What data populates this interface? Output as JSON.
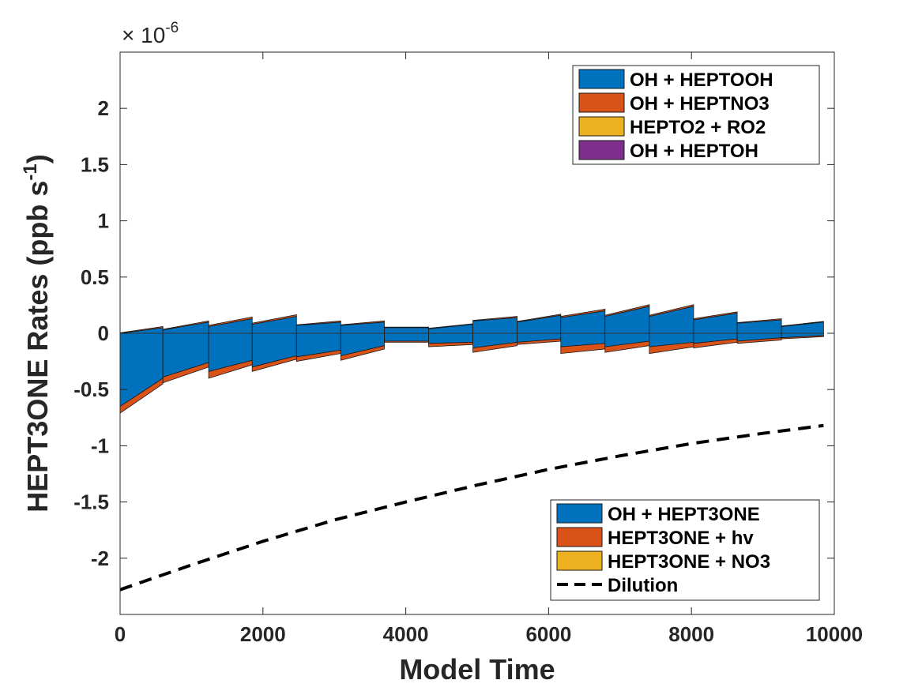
{
  "chart_data": {
    "type": "area",
    "xlabel": "Model Time",
    "ylabel": "HEPT3ONE Rates (ppb s",
    "ylabel_exp": "-1",
    "ylabel_close": ")",
    "y_multiplier_base": "× 10",
    "y_multiplier_exp": "-6",
    "xlim": [
      0,
      10000
    ],
    "ylim": [
      -2.5,
      2.5
    ],
    "x_ticks": [
      0,
      2000,
      4000,
      6000,
      8000,
      10000
    ],
    "x_tick_labels": [
      "0",
      "2000",
      "4000",
      "6000",
      "8000",
      "10000"
    ],
    "y_ticks": [
      -2,
      -1.5,
      -1,
      -0.5,
      0,
      0.5,
      1,
      1.5,
      2
    ],
    "y_tick_labels": [
      "-2",
      "-1.5",
      "-1",
      "-0.5",
      "0",
      "0.5",
      "1",
      "1.5",
      "2"
    ],
    "grid": false,
    "production_legend": {
      "placement": "top-right",
      "entries": [
        {
          "name": "OH + HEPTOOH",
          "color": "#0072bd"
        },
        {
          "name": "OH + HEPTNO3",
          "color": "#d95319"
        },
        {
          "name": "HEPTO2 + RO2",
          "color": "#edb120"
        },
        {
          "name": "OH + HEPTOH",
          "color": "#7e2f8e"
        }
      ]
    },
    "loss_legend": {
      "placement": "bottom-right",
      "entries": [
        {
          "name": "OH + HEPT3ONE",
          "color": "#0072bd",
          "style": "fill"
        },
        {
          "name": "HEPT3ONE + hv",
          "color": "#d95319",
          "style": "fill"
        },
        {
          "name": "HEPT3ONE + NO3",
          "color": "#edb120",
          "style": "fill"
        },
        {
          "name": "Dilution",
          "color": "#000000",
          "style": "dashed"
        }
      ]
    },
    "production_series": [
      {
        "name": "OH + HEPTOOH",
        "x": [
          0,
          600,
          1240,
          1850,
          2470,
          3090,
          3700,
          4320,
          4940,
          5560,
          6170,
          6790,
          7410,
          8030,
          8640,
          9260,
          9850
        ],
        "start": [
          0.0,
          0.03,
          0.06,
          0.08,
          0.07,
          0.07,
          0.05,
          0.04,
          0.11,
          0.1,
          0.14,
          0.15,
          0.15,
          0.12,
          0.09,
          0.06,
          0.05
        ],
        "end": [
          0.05,
          0.1,
          0.13,
          0.15,
          0.1,
          0.1,
          0.05,
          0.08,
          0.14,
          0.16,
          0.2,
          0.24,
          0.24,
          0.18,
          0.12,
          0.1,
          0.05
        ]
      },
      {
        "name": "OH + HEPTNO3",
        "x": [
          0,
          600,
          1240,
          1850,
          2470,
          3090,
          3700,
          4320,
          4940,
          5560,
          6170,
          6790,
          7410,
          8030,
          8640,
          9260,
          9850
        ],
        "start": [
          0.005,
          0.005,
          0.01,
          0.01,
          0.005,
          0.005,
          0.005,
          0.005,
          0.005,
          0.005,
          0.01,
          0.01,
          0.01,
          0.01,
          0.005,
          0.005,
          0.005
        ],
        "end": [
          0.01,
          0.01,
          0.015,
          0.015,
          0.01,
          0.01,
          0.005,
          0.005,
          0.01,
          0.01,
          0.015,
          0.015,
          0.015,
          0.01,
          0.01,
          0.005,
          0.005
        ]
      },
      {
        "name": "HEPTO2 + RO2",
        "x": [
          0,
          9850
        ],
        "start": [
          0,
          0
        ],
        "end": [
          0,
          0
        ]
      },
      {
        "name": "OH + HEPTOH",
        "x": [
          0,
          9850
        ],
        "start": [
          0,
          0
        ],
        "end": [
          0,
          0
        ]
      }
    ],
    "loss_series": [
      {
        "name": "OH + HEPT3ONE",
        "x": [
          0,
          600,
          1240,
          1850,
          2470,
          3090,
          3700,
          4320,
          4940,
          5560,
          6170,
          6790,
          7410,
          8030,
          8640,
          9260,
          9850
        ],
        "start": [
          -0.65,
          -0.39,
          -0.34,
          -0.3,
          -0.21,
          -0.2,
          -0.07,
          -0.09,
          -0.13,
          -0.08,
          -0.12,
          -0.12,
          -0.12,
          -0.09,
          -0.07,
          -0.04,
          -0.02
        ],
        "end": [
          -0.4,
          -0.26,
          -0.24,
          -0.2,
          -0.15,
          -0.11,
          -0.07,
          -0.08,
          -0.08,
          -0.05,
          -0.09,
          -0.07,
          -0.08,
          -0.05,
          -0.04,
          -0.02,
          -0.02
        ]
      },
      {
        "name": "HEPT3ONE + hv",
        "x": [
          0,
          600,
          1240,
          1850,
          2470,
          3090,
          3700,
          4320,
          4940,
          5560,
          6170,
          6790,
          7410,
          8030,
          8640,
          9260,
          9850
        ],
        "start": [
          -0.06,
          -0.05,
          -0.06,
          -0.04,
          -0.04,
          -0.04,
          -0.01,
          -0.03,
          -0.04,
          -0.02,
          -0.06,
          -0.05,
          -0.06,
          -0.04,
          -0.02,
          -0.01,
          -0.01
        ],
        "end": [
          -0.05,
          -0.04,
          -0.04,
          -0.03,
          -0.03,
          -0.03,
          -0.01,
          -0.02,
          -0.03,
          -0.02,
          -0.05,
          -0.04,
          -0.04,
          -0.03,
          -0.02,
          -0.01,
          -0.01
        ]
      },
      {
        "name": "HEPT3ONE + NO3",
        "x": [
          0,
          9850
        ],
        "start": [
          0,
          0
        ],
        "end": [
          0,
          0
        ]
      }
    ],
    "dilution": {
      "name": "Dilution",
      "x": [
        0,
        1000,
        2000,
        3000,
        4000,
        5000,
        6000,
        7000,
        8000,
        9000,
        9850
      ],
      "y": [
        -2.28,
        -2.06,
        -1.85,
        -1.66,
        -1.5,
        -1.35,
        -1.21,
        -1.09,
        -0.98,
        -0.89,
        -0.82
      ]
    }
  }
}
